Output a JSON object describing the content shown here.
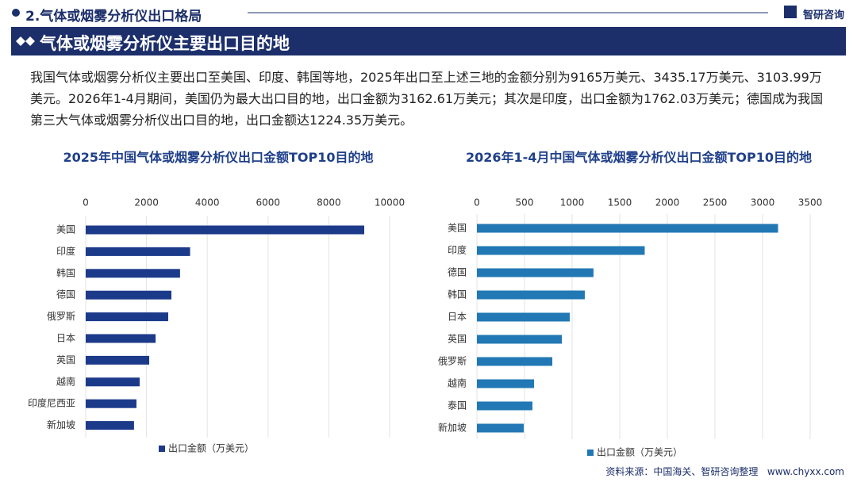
{
  "header": {
    "title": "2.气体或烟雾分析仪出口格局",
    "logo": "智研咨询"
  },
  "banner": {
    "title": "气体或烟雾分析仪主要出口目的地"
  },
  "paragraph": "我国气体或烟雾分析仪主要出口至美国、印度、韩国等地，2025年出口至上述三地的金额分别为9165万美元、3435.17万美元、3103.99万美元。2026年1-4月期间，美国仍为最大出口目的地，出口金额为3162.61万美元；其次是印度，出口金额为1762.03万美元；德国成为我国第三大气体或烟雾分析仪出口目的地，出口金额达1224.35万美元。",
  "chart_data": [
    {
      "type": "barh",
      "title": "2025年中国气体或烟雾分析仪出口金额TOP10目的地",
      "categories": [
        "美国",
        "印度",
        "韩国",
        "德国",
        "俄罗斯",
        "日本",
        "英国",
        "越南",
        "印度尼西亚",
        "新加坡"
      ],
      "series": [
        {
          "name": "出口金额（万美元）",
          "color": "#1c3a8a",
          "values": [
            9165,
            3435.17,
            3103.99,
            2820,
            2715,
            2300,
            2090,
            1775,
            1670,
            1590
          ]
        }
      ],
      "xlim": [
        0,
        10000
      ],
      "xticks": [
        0,
        2000,
        4000,
        6000,
        8000,
        10000
      ],
      "grid": true,
      "legend": "bottom"
    },
    {
      "type": "barh",
      "title": "2026年1-4月中国气体或烟雾分析仪出口金额TOP10目的地",
      "categories": [
        "美国",
        "印度",
        "德国",
        "韩国",
        "日本",
        "英国",
        "俄罗斯",
        "越南",
        "泰国",
        "新加坡"
      ],
      "series": [
        {
          "name": "出口金额（万美元）",
          "color": "#2178b4",
          "values": [
            3162.61,
            1762.03,
            1224.35,
            1133,
            975,
            892,
            792,
            600,
            583,
            492
          ]
        }
      ],
      "xlim": [
        0,
        3500
      ],
      "xticks": [
        0,
        500,
        1000,
        1500,
        2000,
        2500,
        3000,
        3500
      ],
      "grid": true,
      "legend": "bottom"
    }
  ],
  "footer": {
    "source": "资料来源：中国海关、智研咨询整理",
    "url": "www.chyxx.com"
  }
}
